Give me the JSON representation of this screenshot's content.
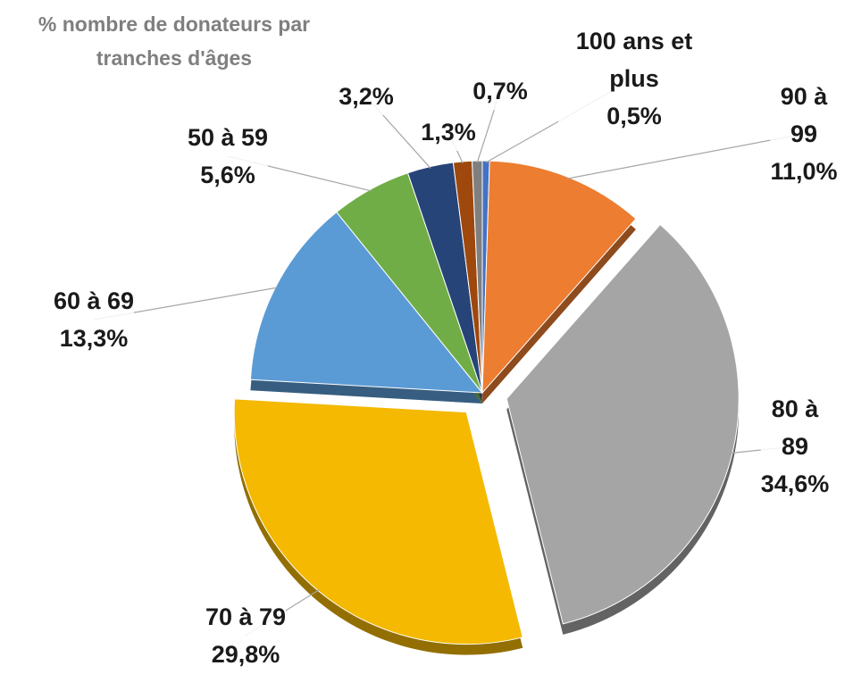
{
  "chart_data": {
    "type": "pie",
    "title": "% nombre de donateurs par tranches d'âges",
    "categories": [
      "100 ans et plus",
      "90 à 99",
      "80 à 89",
      "70 à 79",
      "60 à 69",
      "50 à 59",
      null,
      null,
      null
    ],
    "values": [
      0.5,
      11.0,
      34.6,
      29.8,
      13.3,
      5.6,
      3.2,
      1.3,
      0.7
    ],
    "value_labels": [
      "0,5%",
      "11,0%",
      "34,6%",
      "29,8%",
      "13,3%",
      "5,6%",
      "3,2%",
      "1,3%",
      "0,7%"
    ],
    "colors": [
      "#4472c4",
      "#ed7d31",
      "#a5a5a5",
      "#f4b900",
      "#5b9bd5",
      "#70ad47",
      "#264478",
      "#9e480e",
      "#7f7f7f"
    ],
    "explode": [
      false,
      false,
      true,
      true,
      false,
      false,
      false,
      false,
      false
    ]
  }
}
